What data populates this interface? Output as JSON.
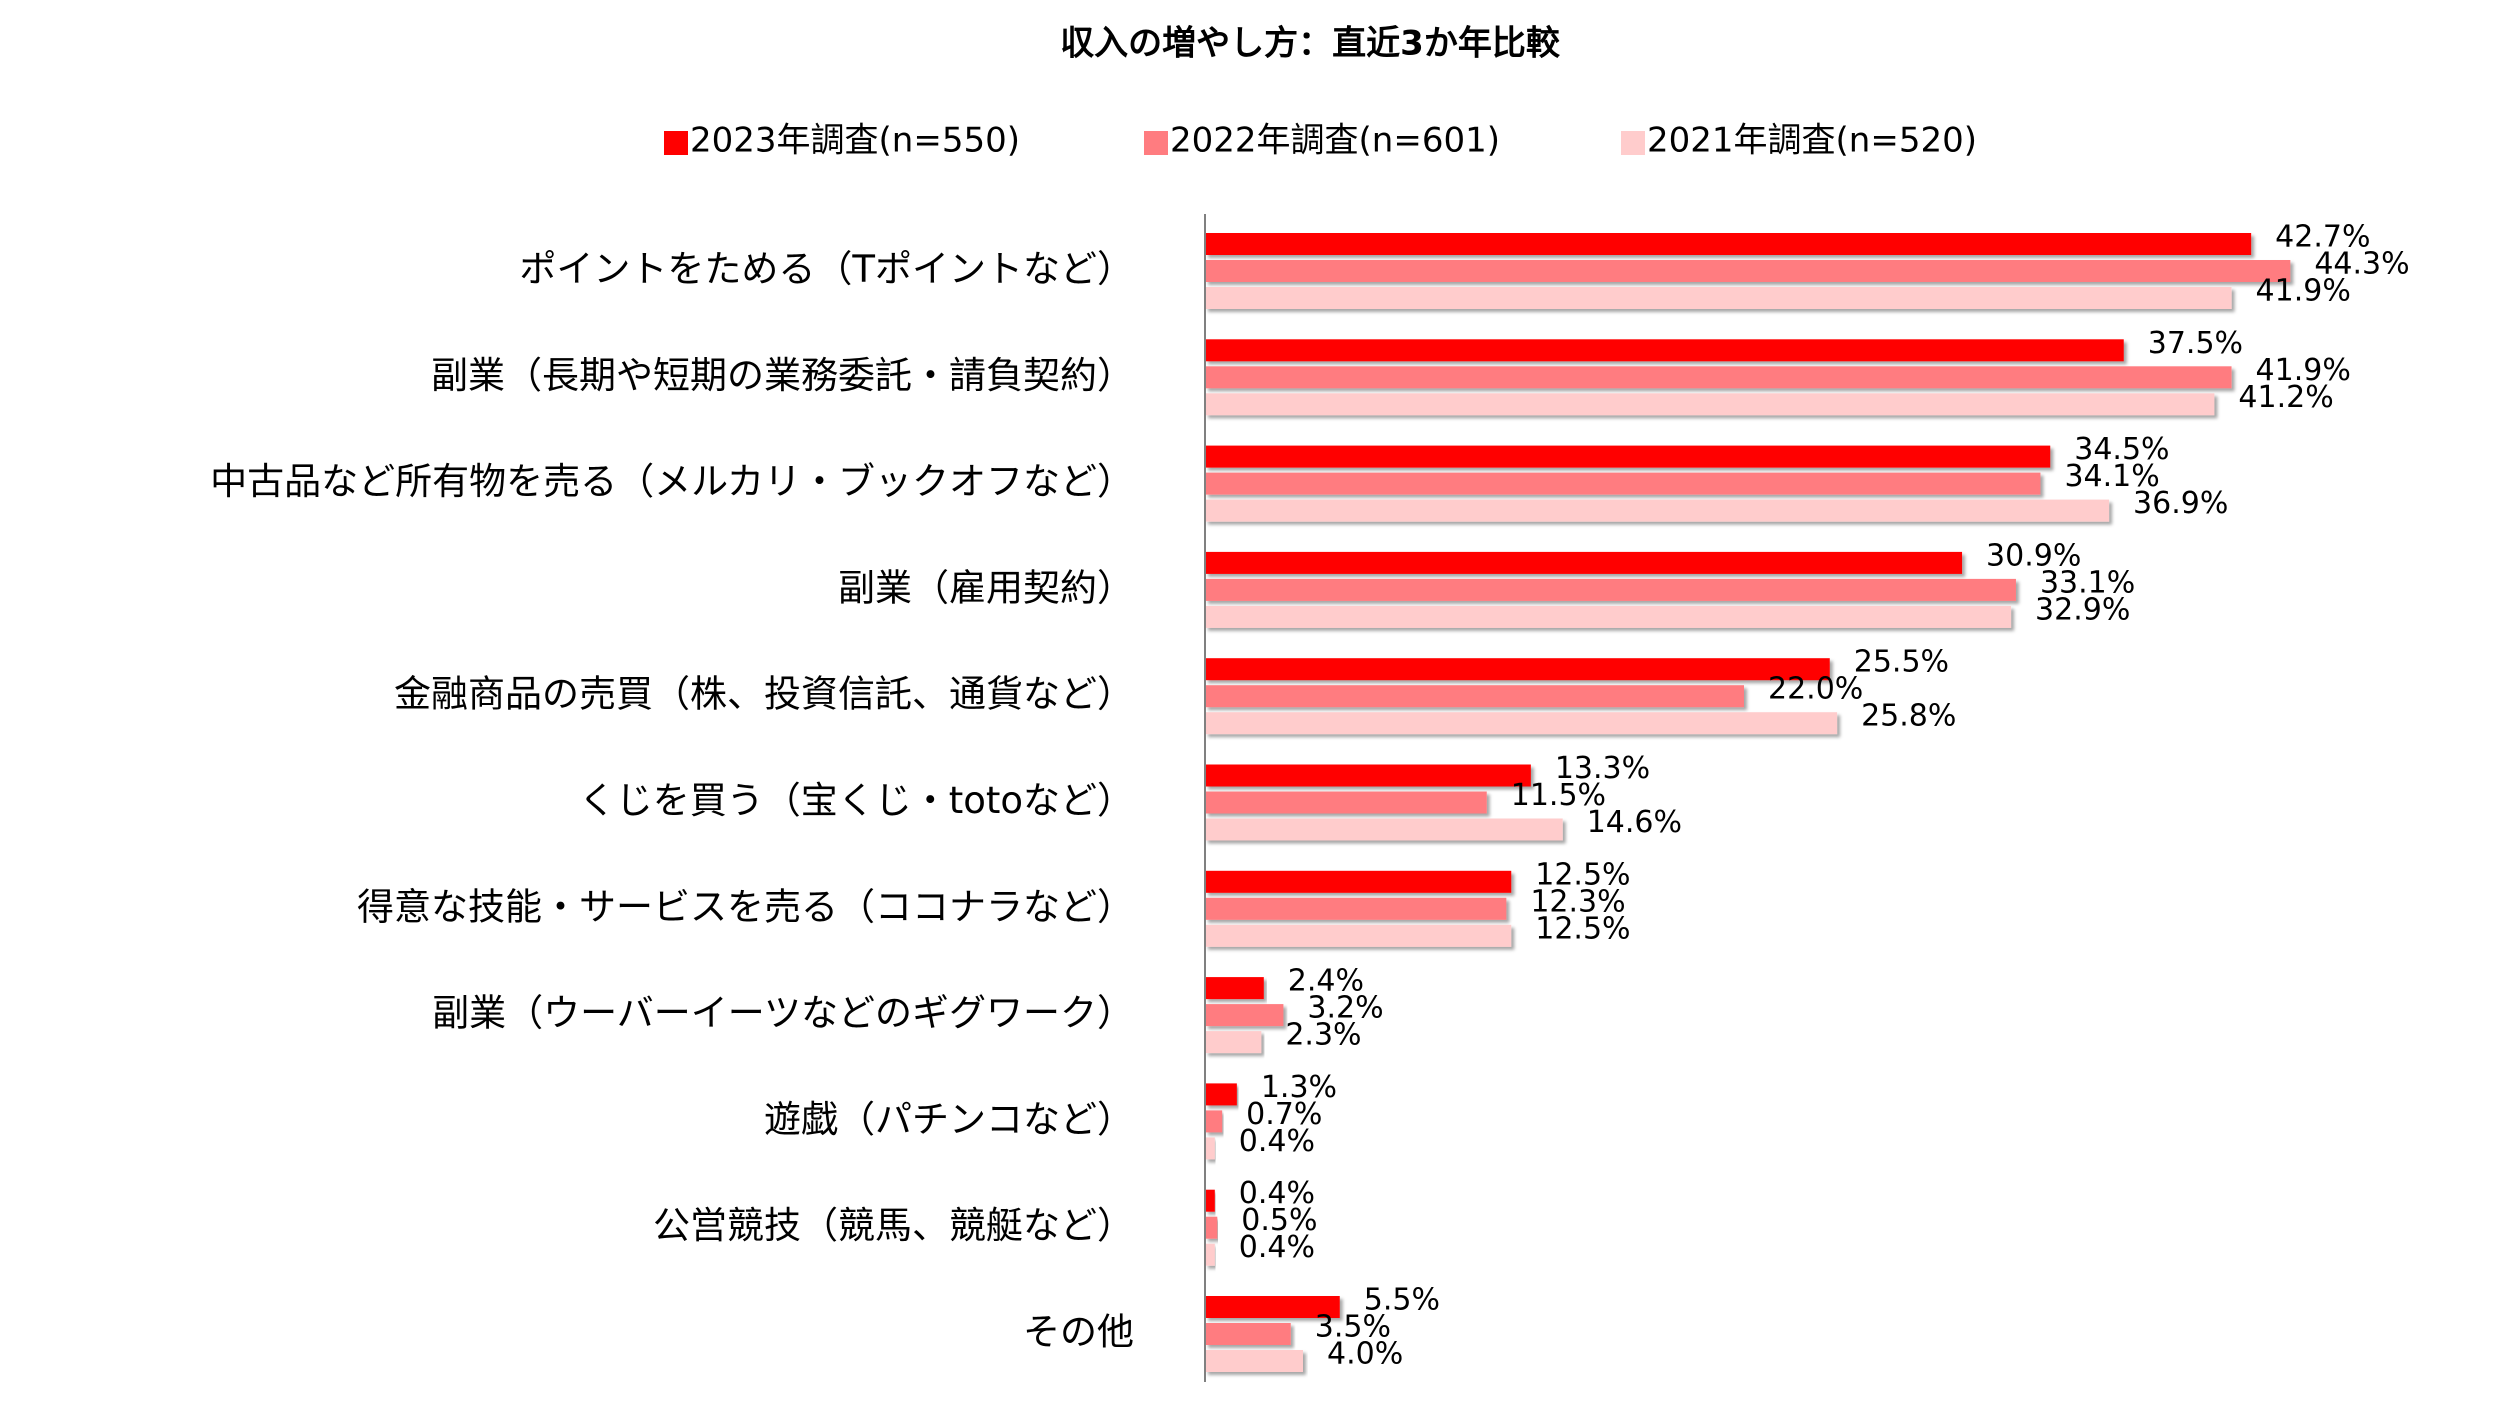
{
  "chart_data": {
    "type": "bar",
    "orientation": "horizontal",
    "title": "収入の増やし方：直近3か年比較",
    "categories": [
      "ポイントをためる（Tポイントなど）",
      "副業（長期や短期の業務委託・請負契約）",
      "中古品など所有物を売る（メルカリ・ブックオフなど）",
      "副業（雇用契約）",
      "金融商品の売買（株、投資信託、通貨など）",
      "くじを買う（宝くじ・totoなど）",
      "得意な技能・サービスを売る（ココナラなど）",
      "副業（ウーバーイーツなどのギグワーク）",
      "遊戯（パチンコなど）",
      "公営競技（競馬、競艇など）",
      "その他"
    ],
    "series": [
      {
        "name": "2023年調査(n=550)",
        "color": "#ff0000",
        "values": [
          42.7,
          37.5,
          34.5,
          30.9,
          25.5,
          13.3,
          12.5,
          2.4,
          1.3,
          0.4,
          5.5
        ],
        "value_labels": [
          "42.7%",
          "37.5%",
          "34.5%",
          "30.9%",
          "25.5%",
          "13.3%",
          "12.5%",
          "2.4%",
          "1.3%",
          "0.4%",
          "5.5%"
        ]
      },
      {
        "name": "2022年調査(n=601)",
        "color": "#ff7c80",
        "values": [
          44.3,
          41.9,
          34.1,
          33.1,
          22.0,
          11.5,
          12.3,
          3.2,
          0.7,
          0.5,
          3.5
        ],
        "value_labels": [
          "44.3%",
          "41.9%",
          "34.1%",
          "33.1%",
          "22.0%",
          "11.5%",
          "12.3%",
          "3.2%",
          "0.7%",
          "0.5%",
          "3.5%"
        ]
      },
      {
        "name": "2021年調査(n=520)",
        "color": "#ffcccc",
        "values": [
          41.9,
          41.2,
          36.9,
          32.9,
          25.8,
          14.6,
          12.5,
          2.3,
          0.4,
          0.4,
          4.0
        ],
        "value_labels": [
          "41.9%",
          "41.2%",
          "36.9%",
          "32.9%",
          "25.8%",
          "14.6%",
          "12.5%",
          "2.3%",
          "0.4%",
          "0.4%",
          "4.0%"
        ]
      }
    ],
    "xlim": [
      0,
      50
    ]
  }
}
